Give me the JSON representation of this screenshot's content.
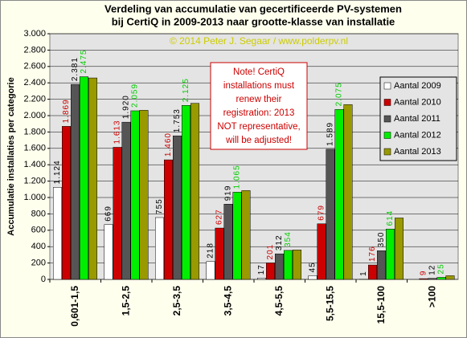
{
  "chart_data": {
    "type": "bar",
    "title": [
      "Verdeling  van  accumulatie  van  gecertificeerde  PV-systemen",
      "bij CertiQ in 2009-2013 naar grootte-klasse van installatie"
    ],
    "subtitle": "© 2014 Peter J. Segaar / www.polderpv.nl",
    "annotation": [
      "Note! CertiQ",
      "installations  must",
      "renew their",
      "registration: 2013",
      "NOT representative,",
      "will be adjusted!"
    ],
    "y_label": "Accumulatie installaties per categorie",
    "categories": [
      "0,601-1,5",
      "1,5-2,5",
      "2,5-3,5",
      "3,5-4,5",
      "4,5-5,5",
      "5,5-15,5",
      "15,5-100",
      ">100"
    ],
    "series": [
      {
        "name": "Aantal 2009",
        "color": "#ffffff",
        "label_color": "#000000",
        "values": [
          1124,
          669,
          755,
          218,
          17,
          45,
          1,
          0
        ],
        "value_labels": [
          "1.124",
          "669",
          "755",
          "218",
          "17",
          "45",
          "1",
          null
        ]
      },
      {
        "name": "Aantal 2010",
        "color": "#cc0000",
        "label_color": "#cc0000",
        "values": [
          1869,
          1613,
          1460,
          627,
          201,
          679,
          176,
          9
        ],
        "value_labels": [
          "1.869",
          "1.613",
          "1.460",
          "627",
          "201",
          "679",
          "176",
          "9"
        ]
      },
      {
        "name": "Aantal 2011",
        "color": "#555555",
        "label_color": "#000000",
        "values": [
          2381,
          1920,
          1753,
          919,
          312,
          1589,
          350,
          12
        ],
        "value_labels": [
          "2.381",
          "1.920",
          "1.753",
          "919",
          "312",
          "1.589",
          "350",
          "12"
        ]
      },
      {
        "name": "Aantal 2012",
        "color": "#00ee00",
        "label_color": "#00cc00",
        "values": [
          2475,
          2059,
          2125,
          1065,
          354,
          2075,
          614,
          25
        ],
        "value_labels": [
          "2.475",
          "2.059",
          "2.125",
          "1.065",
          "354",
          "2.075",
          "614",
          "25"
        ]
      },
      {
        "name": "Aantal 2013",
        "color": "#999900",
        "values": [
          2460,
          2065,
          2150,
          1085,
          360,
          2135,
          750,
          45
        ]
      }
    ],
    "ylim": [
      0,
      3000
    ],
    "yticks": [
      0,
      200,
      400,
      600,
      800,
      {
        "value": 1000,
        "label": "1.000"
      },
      {
        "value": 1200,
        "label": "1.200"
      },
      {
        "value": 1400,
        "label": "1.400"
      },
      {
        "value": 1600,
        "label": "1.600"
      },
      {
        "value": 1800,
        "label": "1.800"
      },
      {
        "value": 2000,
        "label": "2.000"
      },
      {
        "value": 2200,
        "label": "2.200"
      },
      {
        "value": 2400,
        "label": "2.400"
      },
      {
        "value": 2600,
        "label": "2.600"
      },
      {
        "value": 2800,
        "label": "2.800"
      },
      {
        "value": 3000,
        "label": "3.000"
      }
    ],
    "grid": true,
    "legend": "right"
  }
}
